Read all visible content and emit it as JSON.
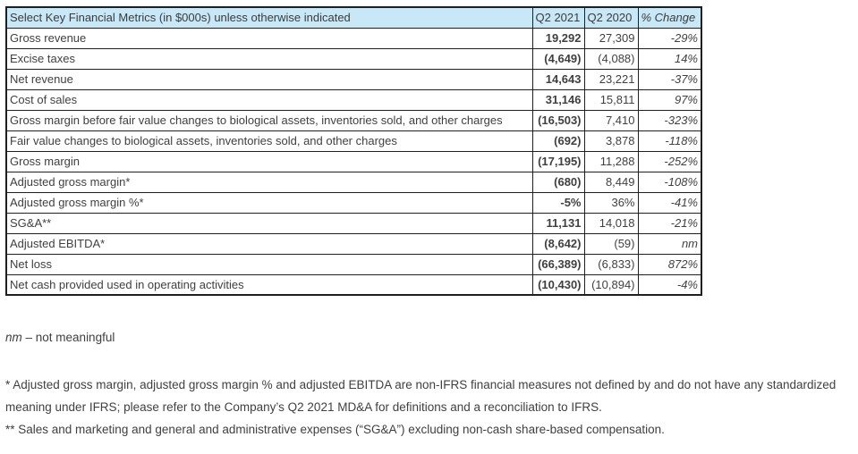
{
  "colors": {
    "header_bg": "#c9e8f7",
    "table_border": "#1f1f1f",
    "text": "#404040"
  },
  "table": {
    "header": {
      "title": "Select Key Financial Metrics (in $000s) unless otherwise indicated",
      "col_q2_2021": "Q2 2021",
      "col_q2_2020": "Q2 2020",
      "col_pct_change": "% Change"
    },
    "rows": [
      {
        "label": "Gross revenue",
        "q2_2021": "19,292",
        "q2_2020": "27,309",
        "pct_change": "-29%"
      },
      {
        "label": "Excise taxes",
        "q2_2021": "(4,649)",
        "q2_2020": "(4,088)",
        "pct_change": "14%"
      },
      {
        "label": "Net revenue",
        "q2_2021": "14,643",
        "q2_2020": "23,221",
        "pct_change": "-37%"
      },
      {
        "label": "Cost of sales",
        "q2_2021": "31,146",
        "q2_2020": "15,811",
        "pct_change": "97%"
      },
      {
        "label": "Gross margin before fair value changes to biological assets, inventories sold, and other charges",
        "q2_2021": "(16,503)",
        "q2_2020": "7,410",
        "pct_change": "-323%"
      },
      {
        "label": "Fair value changes to biological assets, inventories sold, and other charges",
        "q2_2021": "(692)",
        "q2_2020": "3,878",
        "pct_change": "-118%"
      },
      {
        "label": "Gross margin",
        "q2_2021": "(17,195)",
        "q2_2020": "11,288",
        "pct_change": "-252%"
      },
      {
        "label": "Adjusted gross margin*",
        "q2_2021": "(680)",
        "q2_2020": "8,449",
        "pct_change": "-108%"
      },
      {
        "label": "Adjusted gross margin %*",
        "q2_2021": "-5%",
        "q2_2020": "36%",
        "pct_change": "-41%"
      },
      {
        "label": "SG&A**",
        "q2_2021": "11,131",
        "q2_2020": "14,018",
        "pct_change": "-21%"
      },
      {
        "label": "Adjusted EBITDA*",
        "q2_2021": "(8,642)",
        "q2_2020": "(59)",
        "pct_change": "nm"
      },
      {
        "label": "Net loss",
        "q2_2021": "(66,389)",
        "q2_2020": "(6,833)",
        "pct_change": "872%"
      },
      {
        "label": "Net cash provided used in operating activities",
        "q2_2021": "(10,430)",
        "q2_2020": "(10,894)",
        "pct_change": "-4%"
      }
    ]
  },
  "footnotes": {
    "nm_term": "nm",
    "nm_definition": " – not meaningful",
    "single_asterisk": "* Adjusted gross margin, adjusted gross margin % and adjusted EBITDA are non-IFRS financial measures not defined by and do not have any standardized meaning under IFRS; please refer to the Company’s Q2 2021 MD&A for definitions and a reconciliation to IFRS.",
    "double_asterisk": "** Sales and marketing and general and administrative expenses (“SG&A”) excluding non-cash share-based compensation."
  }
}
